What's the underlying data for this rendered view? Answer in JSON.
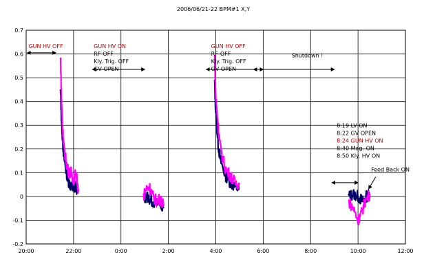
{
  "chart_data": {
    "type": "line",
    "title": "2006/06/21-22 BPM#1 X,Y",
    "xlabel": "",
    "ylabel": "",
    "x_ticks": [
      "20:00",
      "22:00",
      "0:00",
      "2:00",
      "4:00",
      "6:00",
      "8:00",
      "10:00",
      "12:00"
    ],
    "xlim_hours": [
      20,
      36
    ],
    "ylim": [
      -0.2,
      0.7
    ],
    "y_ticks": [
      -0.2,
      -0.1,
      0,
      0.1,
      0.2,
      0.3,
      0.4,
      0.5,
      0.6,
      0.7
    ],
    "y_tick_labels": [
      "-0.2",
      "-0.1",
      "0",
      "0.1",
      "0.2",
      "0.3",
      "0.4",
      "0.5",
      "0.6",
      "0.7"
    ],
    "grid": true,
    "colors": {
      "x": "#000066",
      "y": "#ff00ff",
      "highlight": "#c00000"
    },
    "series": [
      {
        "color": "#000066",
        "segments": [
          [
            [
              21.45,
              0.44
            ],
            [
              21.5,
              0.3
            ],
            [
              21.55,
              0.22
            ],
            [
              21.6,
              0.16
            ],
            [
              21.7,
              0.1
            ],
            [
              21.8,
              0.06
            ],
            [
              21.9,
              0.04
            ],
            [
              22.0,
              0.03
            ],
            [
              22.1,
              0.04
            ],
            [
              22.2,
              0.02
            ]
          ],
          [
            [
              24.95,
              -0.01
            ],
            [
              25.1,
              0.0
            ],
            [
              25.3,
              -0.02
            ],
            [
              25.5,
              -0.03
            ],
            [
              25.8,
              -0.05
            ]
          ],
          [
            [
              27.95,
              0.48
            ],
            [
              28.0,
              0.35
            ],
            [
              28.1,
              0.22
            ],
            [
              28.2,
              0.15
            ],
            [
              28.4,
              0.09
            ],
            [
              28.6,
              0.06
            ],
            [
              28.8,
              0.04
            ],
            [
              29.0,
              0.03
            ]
          ],
          [
            [
              33.6,
              0.0
            ],
            [
              33.8,
              0.01
            ],
            [
              34.0,
              0.0
            ],
            [
              34.2,
              -0.02
            ],
            [
              34.35,
              0.0
            ],
            [
              34.5,
              0.01
            ]
          ]
        ]
      },
      {
        "color": "#ff00ff",
        "segments": [
          [
            [
              21.45,
              0.58
            ],
            [
              21.5,
              0.38
            ],
            [
              21.55,
              0.27
            ],
            [
              21.6,
              0.2
            ],
            [
              21.7,
              0.14
            ],
            [
              21.8,
              0.1
            ],
            [
              21.9,
              0.1
            ],
            [
              22.0,
              0.07
            ],
            [
              22.1,
              0.1
            ],
            [
              22.2,
              0.03
            ]
          ],
          [
            [
              24.95,
              0.0
            ],
            [
              25.05,
              0.03
            ],
            [
              25.2,
              0.04
            ],
            [
              25.35,
              0.0
            ],
            [
              25.5,
              -0.02
            ],
            [
              25.65,
              -0.01
            ],
            [
              25.8,
              -0.04
            ]
          ],
          [
            [
              27.95,
              0.59
            ],
            [
              28.0,
              0.42
            ],
            [
              28.1,
              0.3
            ],
            [
              28.2,
              0.2
            ],
            [
              28.4,
              0.12
            ],
            [
              28.6,
              0.09
            ],
            [
              28.8,
              0.06
            ],
            [
              29.0,
              0.05
            ]
          ],
          [
            [
              33.6,
              -0.02
            ],
            [
              33.8,
              -0.05
            ],
            [
              34.0,
              -0.1
            ],
            [
              34.15,
              -0.07
            ],
            [
              34.3,
              -0.02
            ],
            [
              34.5,
              0.01
            ]
          ]
        ]
      }
    ],
    "annotations": [
      {
        "lines": [
          "GUN HV OFF"
        ],
        "red_lines": [
          0
        ],
        "x": 20.1,
        "y": 0.625,
        "arrow": [
          20.05,
          21.25,
          0.605
        ]
      },
      {
        "lines": [
          "GUN HV ON",
          "RF-OFF",
          "Kly. Trig. OFF",
          "GV OPEN"
        ],
        "red_lines": [
          0
        ],
        "x": 22.85,
        "y": 0.625,
        "arrow": [
          22.8,
          25.0,
          0.535
        ]
      },
      {
        "lines": [
          "GUN HV OFF",
          "RF-OFF",
          "Kly. Trig. OFF",
          "GV OPEN"
        ],
        "red_lines": [
          0
        ],
        "x": 27.8,
        "y": 0.625,
        "arrow": [
          27.6,
          30.0,
          0.535
        ]
      },
      {
        "lines": [
          "Shutdown !"
        ],
        "red_lines": [],
        "x": 31.2,
        "y": 0.585,
        "arrow": [
          29.6,
          33.0,
          0.535
        ]
      },
      {
        "lines": [
          "8:19 LV ON",
          "8:22 GV OPEN",
          "8:24 GUN HV ON",
          "8:40 Mag. ON",
          "8:50 Kly. HV ON"
        ],
        "red_lines": [
          2
        ],
        "x": 33.1,
        "y": 0.29,
        "arrow": [
          32.9,
          34.0,
          0.058
        ]
      },
      {
        "lines": [
          "Feed Back ON"
        ],
        "red_lines": [],
        "x": 34.55,
        "y": 0.105,
        "pointer": [
          34.75,
          0.083,
          34.45,
          0.032
        ]
      }
    ]
  }
}
